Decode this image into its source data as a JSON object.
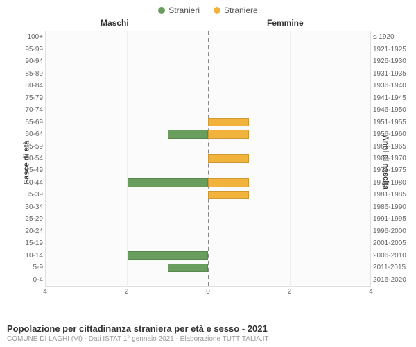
{
  "legend": {
    "m": {
      "label": "Stranieri",
      "color": "#6a9e5e"
    },
    "f": {
      "label": "Straniere",
      "color": "#f2b33d"
    }
  },
  "header": {
    "m": "Maschi",
    "f": "Femmine"
  },
  "axes": {
    "left_label": "Fasce di età",
    "right_label": "Anni di nascita",
    "xmax": 4,
    "xticks": [
      4,
      2,
      0,
      2,
      4
    ]
  },
  "chart": {
    "type": "population-pyramid",
    "background": "#fbfbfb",
    "grid_color": "#eeeeee",
    "center_color": "#888888",
    "bar_height_ratio": 0.7
  },
  "rows": [
    {
      "age": "100+",
      "birth": "≤ 1920",
      "m": 0,
      "f": 0
    },
    {
      "age": "95-99",
      "birth": "1921-1925",
      "m": 0,
      "f": 0
    },
    {
      "age": "90-94",
      "birth": "1926-1930",
      "m": 0,
      "f": 0
    },
    {
      "age": "85-89",
      "birth": "1931-1935",
      "m": 0,
      "f": 0
    },
    {
      "age": "80-84",
      "birth": "1936-1940",
      "m": 0,
      "f": 0
    },
    {
      "age": "75-79",
      "birth": "1941-1945",
      "m": 0,
      "f": 0
    },
    {
      "age": "70-74",
      "birth": "1946-1950",
      "m": 0,
      "f": 0
    },
    {
      "age": "65-69",
      "birth": "1951-1955",
      "m": 0,
      "f": 1
    },
    {
      "age": "60-64",
      "birth": "1956-1960",
      "m": 1,
      "f": 1
    },
    {
      "age": "55-59",
      "birth": "1961-1965",
      "m": 0,
      "f": 0
    },
    {
      "age": "50-54",
      "birth": "1966-1970",
      "m": 0,
      "f": 1
    },
    {
      "age": "45-49",
      "birth": "1971-1975",
      "m": 0,
      "f": 0
    },
    {
      "age": "40-44",
      "birth": "1976-1980",
      "m": 2,
      "f": 1
    },
    {
      "age": "35-39",
      "birth": "1981-1985",
      "m": 0,
      "f": 1
    },
    {
      "age": "30-34",
      "birth": "1986-1990",
      "m": 0,
      "f": 0
    },
    {
      "age": "25-29",
      "birth": "1991-1995",
      "m": 0,
      "f": 0
    },
    {
      "age": "20-24",
      "birth": "1996-2000",
      "m": 0,
      "f": 0
    },
    {
      "age": "15-19",
      "birth": "2001-2005",
      "m": 0,
      "f": 0
    },
    {
      "age": "10-14",
      "birth": "2006-2010",
      "m": 2,
      "f": 0
    },
    {
      "age": "5-9",
      "birth": "2011-2015",
      "m": 1,
      "f": 0
    },
    {
      "age": "0-4",
      "birth": "2016-2020",
      "m": 0,
      "f": 0
    }
  ],
  "footer": {
    "title": "Popolazione per cittadinanza straniera per età e sesso - 2021",
    "subtitle": "COMUNE DI LAGHI (VI) - Dati ISTAT 1° gennaio 2021 - Elaborazione TUTTITALIA.IT"
  }
}
